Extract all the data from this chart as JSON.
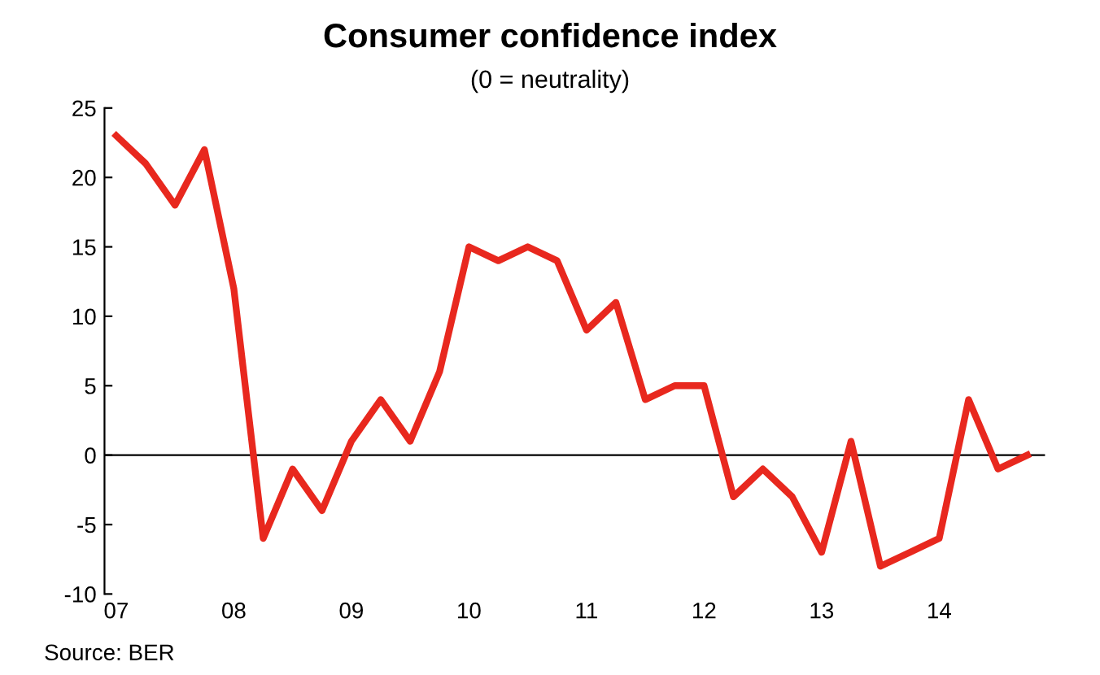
{
  "chart_data": {
    "type": "line",
    "title": "Consumer confidence index",
    "subtitle": "(0 = neutrality)",
    "x": [
      2007.0,
      2007.25,
      2007.5,
      2007.75,
      2008.0,
      2008.25,
      2008.5,
      2008.75,
      2009.0,
      2009.25,
      2009.5,
      2009.75,
      2010.0,
      2010.25,
      2010.5,
      2010.75,
      2011.0,
      2011.25,
      2011.5,
      2011.75,
      2012.0,
      2012.25,
      2012.5,
      2012.75,
      2013.0,
      2013.25,
      2013.5,
      2013.75,
      2014.0,
      2014.25,
      2014.5,
      2014.75
    ],
    "series": [
      {
        "color": "#e8281e",
        "values": [
          23,
          21,
          18,
          22,
          12,
          -6,
          -1,
          -4,
          1,
          4,
          1,
          6,
          15,
          14,
          15,
          14,
          9,
          11,
          4,
          5,
          5,
          -3,
          -1,
          -3,
          -7,
          1,
          -8,
          -7,
          -6,
          4,
          -1,
          0
        ]
      }
    ],
    "xlim": [
      2006.9,
      2014.9
    ],
    "xticks": [
      {
        "value": 2007,
        "label": "07"
      },
      {
        "value": 2008,
        "label": "08"
      },
      {
        "value": 2009,
        "label": "09"
      },
      {
        "value": 2010,
        "label": "10"
      },
      {
        "value": 2011,
        "label": "11"
      },
      {
        "value": 2012,
        "label": "12"
      },
      {
        "value": 2013,
        "label": "13"
      },
      {
        "value": 2014,
        "label": "14"
      }
    ],
    "ylim": [
      -10,
      25
    ],
    "yticks": [
      -10,
      -5,
      0,
      5,
      10,
      15,
      20,
      25
    ],
    "ref_lines": [
      {
        "axis": "y",
        "value": 0,
        "color": "#000000"
      }
    ],
    "grid": false,
    "legend": false,
    "marker": "none",
    "line_style": "solid",
    "annotations": [
      "Source: BER"
    ]
  }
}
